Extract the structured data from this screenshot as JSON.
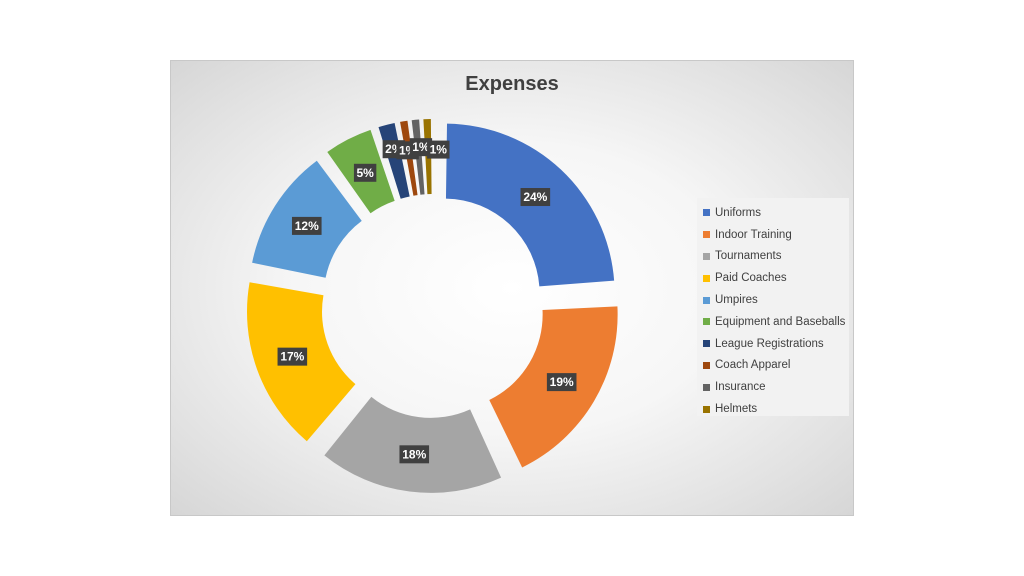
{
  "chart_data": {
    "type": "pie",
    "variant": "exploded-donut",
    "title": "Expenses",
    "legend_position": "right",
    "categories": [
      "Uniforms",
      "Indoor Training",
      "Tournaments",
      "Paid Coaches",
      "Umpires",
      "Equipment and Baseballs",
      "League Registrations",
      "Coach Apparel",
      "Insurance",
      "Helmets"
    ],
    "values": [
      24,
      19,
      18,
      17,
      12,
      5,
      2,
      1,
      1,
      1
    ],
    "labels": [
      "24%",
      "19%",
      "18%",
      "17%",
      "12%",
      "5%",
      "2%",
      "1%",
      "1%",
      "1%"
    ],
    "colors": [
      "#4472C4",
      "#ED7D31",
      "#A5A5A5",
      "#FFC000",
      "#5B9BD5",
      "#70AD47",
      "#264478",
      "#9E480E",
      "#636363",
      "#997300"
    ]
  }
}
